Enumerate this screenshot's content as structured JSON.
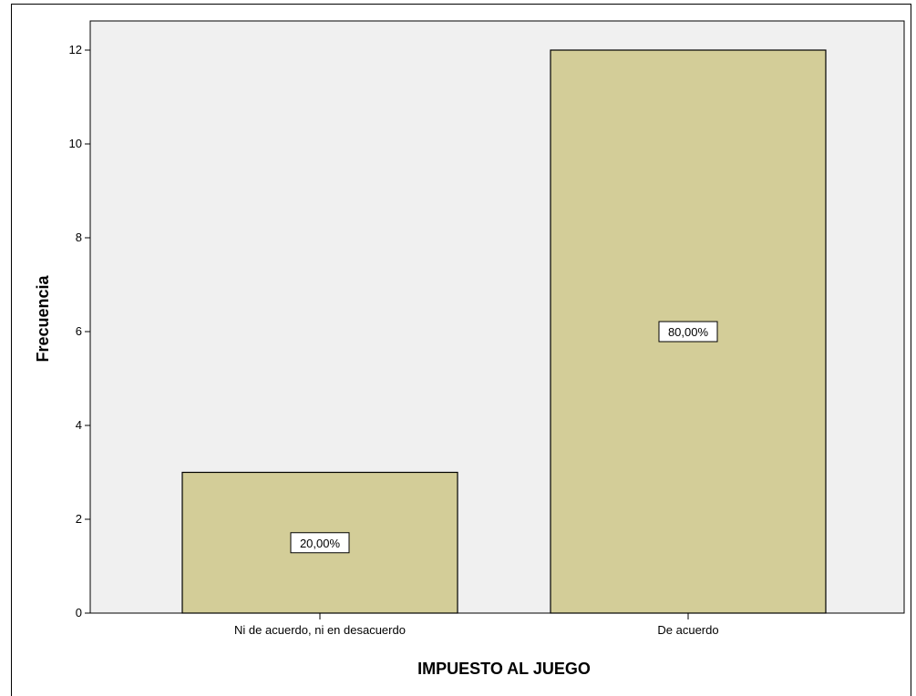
{
  "chart_data": {
    "type": "bar",
    "title": "",
    "xlabel": "IMPUESTO AL JUEGO",
    "ylabel": "Frecuencia",
    "categories": [
      "Ni de acuerdo, ni en desacuerdo",
      "De acuerdo"
    ],
    "values": [
      3,
      12
    ],
    "data_labels": [
      "20,00%",
      "80,00%"
    ],
    "ylim": [
      0,
      12
    ],
    "yticks": [
      "0",
      "2",
      "4",
      "6",
      "8",
      "10",
      "12"
    ],
    "grid": false,
    "legend": "none",
    "colors": {
      "bar_fill": "#d3cd98",
      "bar_stroke": "#000000",
      "plot_background": "#f0f0f0",
      "axis": "#000000"
    }
  }
}
